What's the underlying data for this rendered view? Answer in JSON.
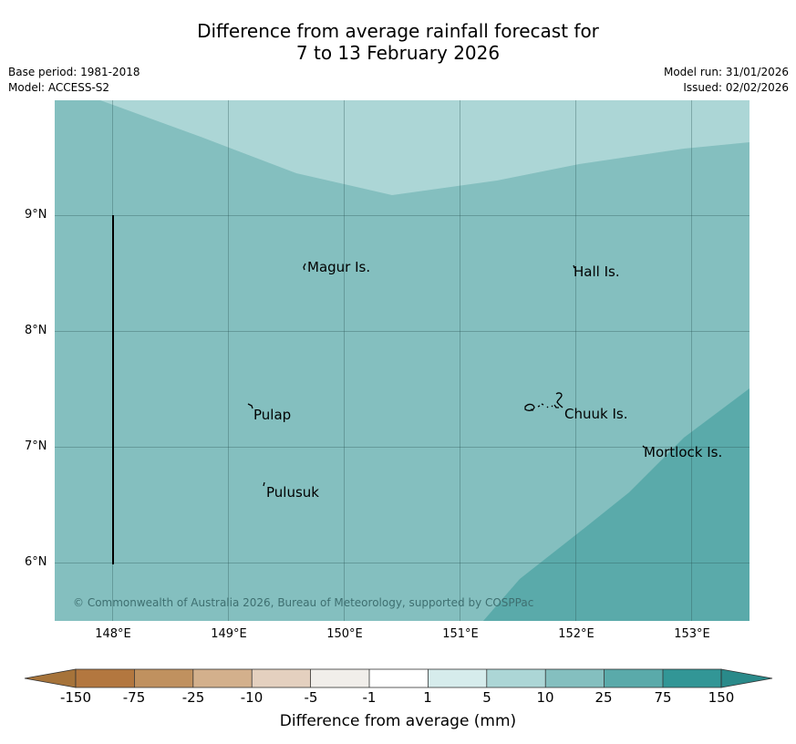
{
  "title": {
    "line1": "Difference from average rainfall forecast for",
    "line2": "7 to 13 February 2026"
  },
  "meta": {
    "base_period": "Base period: 1981-2018",
    "model": "Model: ACCESS-S2",
    "model_run": "Model run: 31/01/2026",
    "issued": "Issued: 02/02/2026"
  },
  "map": {
    "region_lon": [
      147.5,
      153.5
    ],
    "region_lat": [
      5.5,
      10.0
    ],
    "lat_labels": [
      "9°N",
      "8°N",
      "7°N",
      "6°N"
    ],
    "lon_labels": [
      "148°E",
      "149°E",
      "150°E",
      "151°E",
      "152°E",
      "153°E"
    ],
    "places": [
      {
        "name": "Magur Is."
      },
      {
        "name": "Hall Is."
      },
      {
        "name": "Pulap"
      },
      {
        "name": "Chuuk Is."
      },
      {
        "name": "Mortlock Is."
      },
      {
        "name": "Pulusuk"
      }
    ],
    "copyright": "© Commonwealth of Australia 2026, Bureau of Meteorology, supported by COSPPac"
  },
  "colorbar": {
    "title": "Difference from average (mm)",
    "labels": [
      "-150",
      "-75",
      "-25",
      "-10",
      "-5",
      "-1",
      "1",
      "5",
      "10",
      "25",
      "75",
      "150"
    ],
    "colors": {
      "extend_low": "#a6733a",
      "c1": "#b3773f",
      "c2": "#c0915f",
      "c3": "#d3b08c",
      "c4": "#e4d0bf",
      "c5": "#f1eeea",
      "c6": "#ffffff",
      "c7": "#d6ecec",
      "c8": "#acd6d6",
      "c9": "#84bfbf",
      "c10": "#5aaaaa",
      "c11": "#329696",
      "extend_high": "#2a8a8a"
    }
  }
}
